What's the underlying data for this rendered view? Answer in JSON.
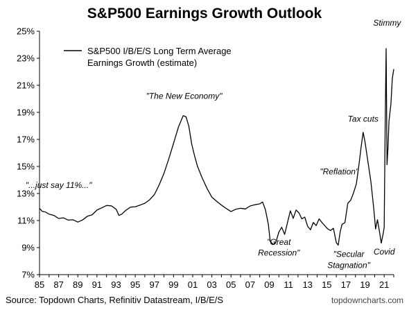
{
  "chart_data": {
    "type": "line",
    "title": "S&P500 Earnings Growth Outlook",
    "xlabel": "",
    "ylabel": "",
    "xlim": [
      1985,
      2022
    ],
    "ylim": [
      7,
      25
    ],
    "x_ticks": [
      {
        "value": 1985,
        "label": "85"
      },
      {
        "value": 1987,
        "label": "87"
      },
      {
        "value": 1989,
        "label": "89"
      },
      {
        "value": 1991,
        "label": "91"
      },
      {
        "value": 1993,
        "label": "93"
      },
      {
        "value": 1995,
        "label": "95"
      },
      {
        "value": 1997,
        "label": "97"
      },
      {
        "value": 1999,
        "label": "99"
      },
      {
        "value": 2001,
        "label": "01"
      },
      {
        "value": 2003,
        "label": "03"
      },
      {
        "value": 2005,
        "label": "05"
      },
      {
        "value": 2007,
        "label": "07"
      },
      {
        "value": 2009,
        "label": "09"
      },
      {
        "value": 2011,
        "label": "11"
      },
      {
        "value": 2013,
        "label": "13"
      },
      {
        "value": 2015,
        "label": "15"
      },
      {
        "value": 2017,
        "label": "17"
      },
      {
        "value": 2019,
        "label": "19"
      },
      {
        "value": 2021,
        "label": "21"
      }
    ],
    "y_ticks": [
      {
        "value": 7,
        "label": "7%"
      },
      {
        "value": 9,
        "label": "9%"
      },
      {
        "value": 11,
        "label": "11%"
      },
      {
        "value": 13,
        "label": "13%"
      },
      {
        "value": 15,
        "label": "15%"
      },
      {
        "value": 17,
        "label": "17%"
      },
      {
        "value": 19,
        "label": "19%"
      },
      {
        "value": 21,
        "label": "21%"
      },
      {
        "value": 23,
        "label": "23%"
      },
      {
        "value": 25,
        "label": "25%"
      }
    ],
    "grid": false,
    "legend": {
      "position": "top-left",
      "lines": [
        "S&P500 I/B/E/S Long Term Average",
        "Earnings Growth (estimate)"
      ]
    },
    "series": [
      {
        "name": "S&P500 I/B/E/S Long Term Average Earnings Growth (estimate)",
        "color": "#000000",
        "x": [
          1985.0,
          1985.3,
          1985.6,
          1986.0,
          1986.5,
          1987.0,
          1987.5,
          1988.0,
          1988.5,
          1989.0,
          1989.5,
          1990.0,
          1990.5,
          1991.0,
          1991.5,
          1992.0,
          1992.5,
          1993.0,
          1993.3,
          1993.6,
          1994.0,
          1994.5,
          1995.0,
          1995.5,
          1996.0,
          1996.5,
          1997.0,
          1997.5,
          1998.0,
          1998.5,
          1999.0,
          1999.5,
          2000.0,
          2000.3,
          2000.6,
          2000.9,
          2001.2,
          2001.5,
          2002.0,
          2002.5,
          2003.0,
          2003.5,
          2004.0,
          2004.5,
          2005.0,
          2005.5,
          2006.0,
          2006.5,
          2007.0,
          2007.5,
          2008.0,
          2008.3,
          2008.6,
          2008.9,
          2009.1,
          2009.4,
          2009.7,
          2010.0,
          2010.3,
          2010.6,
          2010.9,
          2011.2,
          2011.5,
          2011.8,
          2012.1,
          2012.4,
          2012.7,
          2013.0,
          2013.3,
          2013.6,
          2013.9,
          2014.2,
          2014.5,
          2014.8,
          2015.1,
          2015.4,
          2015.7,
          2016.0,
          2016.2,
          2016.4,
          2016.6,
          2016.9,
          2017.2,
          2017.5,
          2017.8,
          2018.1,
          2018.4,
          2018.6,
          2018.8,
          2019.0,
          2019.3,
          2019.6,
          2019.9,
          2020.1,
          2020.3,
          2020.5,
          2020.7,
          2020.9,
          2021.0,
          2021.1,
          2021.2,
          2021.3,
          2021.4,
          2021.5,
          2021.7,
          2021.85,
          2022.0
        ],
        "values": [
          11.9,
          11.6,
          11.5,
          11.3,
          11.2,
          11.0,
          11.1,
          11.0,
          11.1,
          11.0,
          11.2,
          11.5,
          11.6,
          11.9,
          12.0,
          12.1,
          12.0,
          11.7,
          11.2,
          11.3,
          11.6,
          11.9,
          12.0,
          12.2,
          12.4,
          12.7,
          13.1,
          13.8,
          14.6,
          15.6,
          16.7,
          17.8,
          18.6,
          18.5,
          17.8,
          16.5,
          15.7,
          15.0,
          14.2,
          13.5,
          12.9,
          12.6,
          12.3,
          12.0,
          11.7,
          11.8,
          11.8,
          11.7,
          11.9,
          12.0,
          12.1,
          12.3,
          11.8,
          10.8,
          9.6,
          9.4,
          9.6,
          10.3,
          10.6,
          10.0,
          10.8,
          11.6,
          11.0,
          11.6,
          11.4,
          11.0,
          11.2,
          10.6,
          10.4,
          11.0,
          10.8,
          11.3,
          11.0,
          10.7,
          10.4,
          10.2,
          10.3,
          9.2,
          9.0,
          10.0,
          10.6,
          10.8,
          12.3,
          12.6,
          13.2,
          13.9,
          15.5,
          16.6,
          17.6,
          16.8,
          15.3,
          13.8,
          11.8,
          10.2,
          10.9,
          10.1,
          9.3,
          10.1,
          10.6,
          18.0,
          23.9,
          15.3,
          16.5,
          18.4,
          19.6,
          21.4,
          22.2
        ]
      }
    ],
    "annotations": [
      {
        "text": "\"The New Economy\"",
        "x": 2000.1,
        "y": 20.0,
        "anchor": "middle"
      },
      {
        "text": "\"...just say 11%...\"",
        "x": 1987.0,
        "y": 13.4,
        "anchor": "middle"
      },
      {
        "text": "\"Great",
        "x": 2010.0,
        "y": 9.2,
        "anchor": "middle"
      },
      {
        "text": "Recession\"",
        "x": 2010.0,
        "y": 8.4,
        "anchor": "middle"
      },
      {
        "text": "\"Secular",
        "x": 2017.3,
        "y": 8.3,
        "anchor": "middle"
      },
      {
        "text": "Stagnation\"",
        "x": 2017.3,
        "y": 7.5,
        "anchor": "middle"
      },
      {
        "text": "\"Reflation\"",
        "x": 2016.3,
        "y": 14.4,
        "anchor": "middle"
      },
      {
        "text": "Tax cuts",
        "x": 2018.8,
        "y": 18.3,
        "anchor": "middle"
      },
      {
        "text": "Stimmy",
        "x": 2021.3,
        "y": 25.4,
        "anchor": "middle"
      },
      {
        "text": "Covid",
        "x": 2021.0,
        "y": 8.5,
        "anchor": "middle"
      }
    ]
  },
  "footer": {
    "source": "Source: Topdown Charts, Refinitiv Datastream, I/B/E/S",
    "brand": "topdowncharts.com"
  }
}
